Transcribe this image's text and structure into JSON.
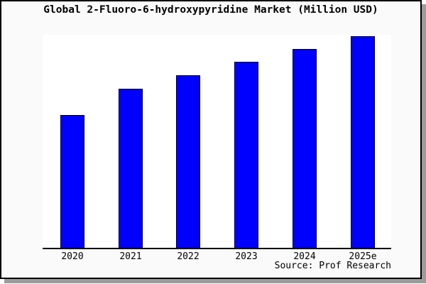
{
  "title": "Global 2-Fluoro-6-hydroxypyridine Market (Million USD)",
  "source_credit": "Source: Prof Research",
  "colors": {
    "bar_fill": "#0000FF",
    "bar_border": "#000000",
    "axis": "#000000",
    "figure_background": "#fafafa",
    "plot_background": "#ffffff",
    "frame_border": "#000000",
    "frame_shadow": "#9c9c9c",
    "text": "#000000"
  },
  "chart_data": {
    "type": "bar",
    "title": "Global 2-Fluoro-6-hydroxypyridine Market (Million USD)",
    "categories": [
      "2020",
      "2021",
      "2022",
      "2023",
      "2024",
      "2025e"
    ],
    "values": [
      63,
      75.3,
      81.8,
      88,
      94,
      100
    ],
    "xlabel": "",
    "ylabel": "",
    "ylim": [
      0,
      100.7
    ],
    "unit_note": "relative scale; y-axis unlabeled in figure",
    "grid": false,
    "legend": false,
    "y_axis_visible": false,
    "x_axis_visible": true,
    "source": "Source: Prof Research"
  }
}
